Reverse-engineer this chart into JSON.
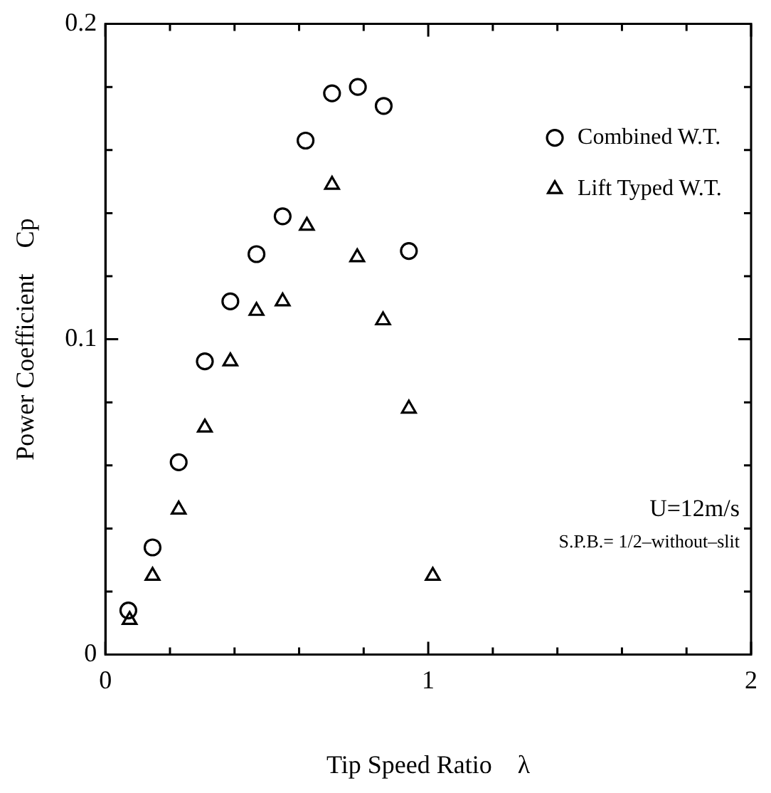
{
  "chart_data": {
    "type": "scatter",
    "xlabel": "Tip Speed Ratio    λ",
    "ylabel": "Power Coefficient    Cp",
    "xlim": [
      0,
      2
    ],
    "ylim": [
      0,
      0.2
    ],
    "xticks": [
      0,
      {
        "value": 0.2,
        "label": null
      },
      {
        "value": 0.4,
        "label": null
      },
      {
        "value": 0.6,
        "label": null
      },
      {
        "value": 0.8,
        "label": null
      },
      1,
      {
        "value": 1.2,
        "label": null
      },
      {
        "value": 1.4,
        "label": null
      },
      {
        "value": 1.6,
        "label": null
      },
      {
        "value": 1.8,
        "label": null
      },
      2
    ],
    "yticks": [
      0,
      {
        "value": 0.02,
        "label": null
      },
      {
        "value": 0.04,
        "label": null
      },
      {
        "value": 0.06,
        "label": null
      },
      {
        "value": 0.08,
        "label": null
      },
      0.1,
      {
        "value": 0.12,
        "label": null
      },
      {
        "value": 0.14,
        "label": null
      },
      {
        "value": 0.16,
        "label": null
      },
      {
        "value": 0.18,
        "label": null
      },
      0.2
    ],
    "grid": false,
    "legend": "top right",
    "annotations": [
      "U=12m/s",
      "S.P.B.= 1/2–without–slit"
    ],
    "series": [
      {
        "name": "Combined W.T.",
        "color": "#000000",
        "marker": "circle",
        "x": [
          0.071,
          0.146,
          0.227,
          0.308,
          0.387,
          0.468,
          0.549,
          0.62,
          0.702,
          0.782,
          0.862,
          0.94
        ],
        "values": [
          0.014,
          0.034,
          0.061,
          0.093,
          0.112,
          0.127,
          0.139,
          0.163,
          0.178,
          0.18,
          0.174,
          0.128
        ]
      },
      {
        "name": "Lift Typed W.T.",
        "color": "#000000",
        "marker": "triangle",
        "x": [
          0.075,
          0.146,
          0.227,
          0.308,
          0.387,
          0.468,
          0.549,
          0.624,
          0.702,
          0.78,
          0.86,
          0.94,
          1.014
        ],
        "values": [
          0.011,
          0.025,
          0.046,
          0.072,
          0.093,
          0.109,
          0.112,
          0.136,
          0.149,
          0.126,
          0.106,
          0.078,
          0.025
        ]
      }
    ]
  }
}
